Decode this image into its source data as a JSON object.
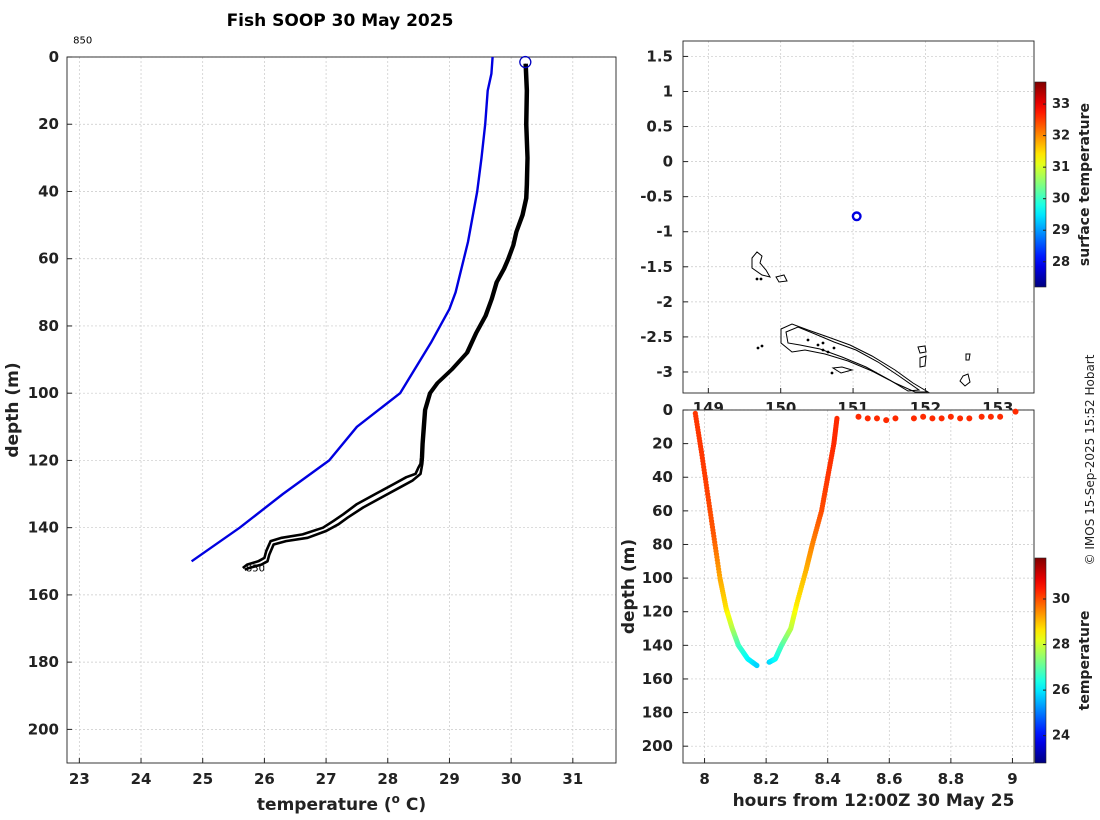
{
  "figure": {
    "title": "Fish SOOP 30 May 2025",
    "credit": "© IMOS 15-Sep-2025 15:52 Hobart"
  },
  "chart_data": [
    {
      "id": "profile",
      "type": "line",
      "title": "Fish SOOP 30 May 2025",
      "xlabel": "temperature (° C)",
      "ylabel": "depth (m)",
      "xlim": [
        22.8,
        31.7
      ],
      "ylim": [
        210,
        0
      ],
      "xticks": [
        23,
        24,
        25,
        26,
        27,
        28,
        29,
        30,
        31
      ],
      "yticks": [
        0,
        20,
        40,
        60,
        80,
        100,
        120,
        140,
        160,
        180,
        200
      ],
      "grid": true,
      "annotations": [
        {
          "text": "850",
          "x": 22.9,
          "y": -4
        },
        {
          "text": "850",
          "x": 25.7,
          "y": 153
        }
      ],
      "series": [
        {
          "color": "#0000e0",
          "x": [
            29.7,
            29.68,
            29.62,
            29.58,
            29.52,
            29.45,
            29.3,
            29.1,
            29.0,
            28.7,
            28.2,
            27.5,
            27.05,
            26.3,
            25.6,
            24.82
          ],
          "y": [
            0,
            5,
            10,
            20,
            30,
            40,
            55,
            70,
            75,
            85,
            100,
            110,
            120,
            130,
            140,
            150
          ]
        },
        {
          "color": "#000000",
          "x": [
            30.25,
            30.27,
            30.26,
            30.28,
            30.27,
            30.26,
            30.2,
            30.1,
            30.05,
            29.97,
            29.9,
            29.78,
            29.7,
            29.6,
            29.45,
            29.3,
            29.05,
            28.82,
            28.7,
            28.62,
            28.6,
            28.58,
            28.57,
            28.56,
            28.55,
            28.53,
            28.4,
            28.2,
            27.9,
            27.6,
            27.35,
            27.2,
            27.0,
            26.7,
            26.35,
            26.15,
            26.08,
            26.05,
            25.95,
            25.75,
            25.68
          ],
          "y": [
            2,
            10,
            20,
            30,
            38,
            42,
            47,
            52,
            56,
            60,
            63,
            67,
            72,
            77,
            82,
            88,
            93,
            97,
            100,
            105,
            110,
            115,
            119,
            121,
            122,
            124,
            126,
            128,
            131,
            134,
            137,
            139,
            141,
            143,
            144,
            145,
            148,
            150,
            151,
            152,
            152.5
          ]
        },
        {
          "color": "#000000",
          "x": [
            30.22,
            30.24,
            30.23,
            30.25,
            30.24,
            30.23,
            30.17,
            30.07,
            30.02,
            29.94,
            29.87,
            29.75,
            29.67,
            29.57,
            29.42,
            29.27,
            29.02,
            28.79,
            28.67,
            28.59,
            28.57,
            28.55,
            28.54,
            28.53,
            28.5,
            28.45,
            28.3,
            28.1,
            27.8,
            27.5,
            27.28,
            27.12,
            26.95,
            26.62,
            26.28,
            26.1,
            26.03,
            26.0,
            25.9,
            25.72,
            25.65
          ],
          "y": [
            2,
            10,
            20,
            30,
            38,
            42,
            47,
            52,
            56,
            60,
            63,
            67,
            72,
            77,
            82,
            88,
            93,
            97,
            100,
            105,
            110,
            115,
            119,
            121,
            122,
            124,
            125,
            127,
            130,
            133,
            136,
            138,
            140,
            142,
            143,
            144,
            147,
            149,
            150,
            151,
            152
          ]
        }
      ],
      "markers": [
        {
          "x": 30.23,
          "y": 1.5,
          "color": "#0000c0",
          "shape": "open-circle"
        }
      ]
    },
    {
      "id": "map",
      "type": "scatter",
      "xlim": [
        148.65,
        153.5
      ],
      "ylim": [
        -3.3,
        1.72
      ],
      "xticks": [
        149,
        150,
        151,
        152,
        153
      ],
      "xticklabels": [
        "149",
        "150",
        "151",
        "152",
        "153"
      ],
      "yticks": [
        1.5,
        1,
        0.5,
        0,
        -0.5,
        -1,
        -1.5,
        -2,
        -2.5,
        -3
      ],
      "grid": true,
      "points": [
        {
          "x": 151.05,
          "y": -0.78,
          "color": "#0000e0",
          "shape": "open-circle"
        }
      ],
      "colorbar": {
        "label": "surface temperature",
        "range": [
          27.2,
          33.7
        ],
        "ticks": [
          28,
          29,
          30,
          31,
          32,
          33
        ]
      }
    },
    {
      "id": "timedepth",
      "type": "scatter",
      "xlabel": "hours from 12:00Z 30 May 25",
      "ylabel": "depth (m)",
      "xlim": [
        7.93,
        9.07
      ],
      "ylim": [
        210,
        0
      ],
      "xticks": [
        8,
        8.2,
        8.4,
        8.6,
        8.8,
        9
      ],
      "yticks": [
        0,
        20,
        40,
        60,
        80,
        100,
        120,
        140,
        160,
        180,
        200
      ],
      "grid": true,
      "colorbar": {
        "label": "temperature",
        "range": [
          22.8,
          31.8
        ],
        "ticks": [
          24,
          26,
          28,
          30
        ]
      },
      "descent": {
        "t": [
          7.97,
          7.99,
          8.01,
          8.03,
          8.05,
          8.07,
          8.09,
          8.11,
          8.14,
          8.17
        ],
        "d": [
          2,
          25,
          50,
          75,
          100,
          118,
          130,
          140,
          148,
          152
        ],
        "T": [
          30.2,
          30.2,
          30.1,
          29.9,
          29.2,
          28.7,
          27.8,
          26.8,
          26.2,
          25.8
        ]
      },
      "ascent": {
        "t": [
          8.21,
          8.23,
          8.25,
          8.28,
          8.3,
          8.33,
          8.35,
          8.38,
          8.4,
          8.42,
          8.43
        ],
        "d": [
          150,
          148,
          140,
          130,
          115,
          95,
          80,
          60,
          40,
          20,
          5
        ],
        "T": [
          25.8,
          26.2,
          26.8,
          27.8,
          28.6,
          29.1,
          29.5,
          30.0,
          30.2,
          30.3,
          30.3
        ]
      },
      "surface": {
        "t": [
          8.5,
          8.53,
          8.56,
          8.59,
          8.62,
          8.68,
          8.71,
          8.74,
          8.77,
          8.8,
          8.83,
          8.86,
          8.9,
          8.93,
          8.96,
          9.01
        ],
        "d": [
          4,
          5,
          5,
          6,
          5,
          5,
          4,
          5,
          5,
          4,
          5,
          5,
          4,
          4,
          4,
          1
        ],
        "T": [
          30.3,
          30.3,
          30.3,
          30.3,
          30.3,
          30.3,
          30.3,
          30.3,
          30.3,
          30.3,
          30.3,
          30.3,
          30.3,
          30.3,
          30.3,
          30.3
        ]
      }
    }
  ]
}
